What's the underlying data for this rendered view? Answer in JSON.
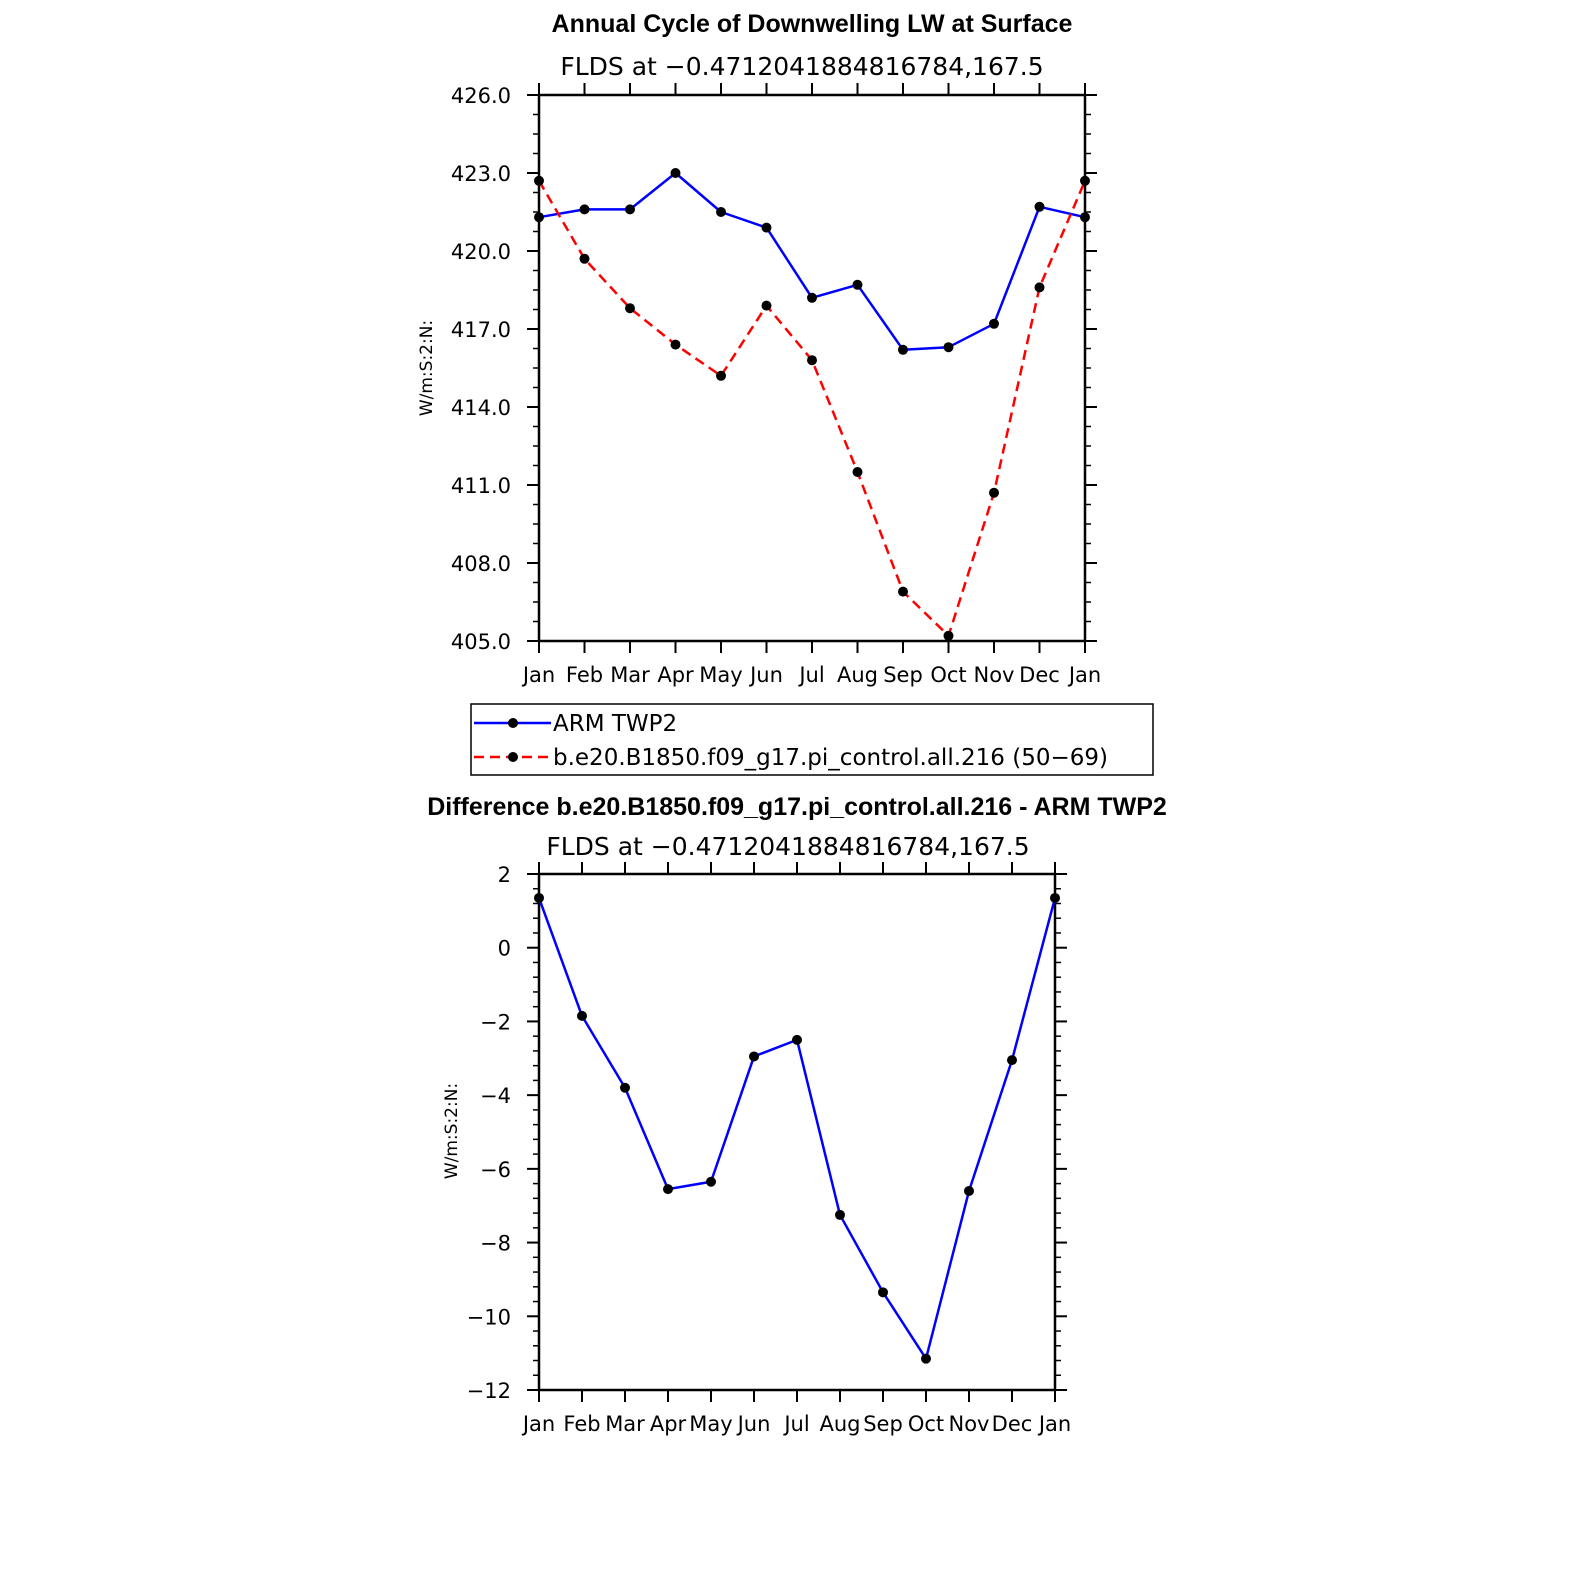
{
  "chart_data": [
    {
      "type": "line",
      "title": "Annual Cycle of Downwelling LW at Surface",
      "subtitle": "FLDS at −0.4712041884816784,167.5",
      "xlabel": "",
      "ylabel": "W/m:S:2:N:",
      "categories": [
        "Jan",
        "Feb",
        "Mar",
        "Apr",
        "May",
        "Jun",
        "Jul",
        "Aug",
        "Sep",
        "Oct",
        "Nov",
        "Dec",
        "Jan"
      ],
      "ylim": [
        405.0,
        426.0
      ],
      "yticks": [
        "405.0",
        "408.0",
        "411.0",
        "414.0",
        "417.0",
        "420.0",
        "423.0",
        "426.0"
      ],
      "grid": false,
      "legend": "below",
      "series": [
        {
          "name": "ARM TWP2",
          "color": "#0000ff",
          "style": "solid",
          "values": [
            421.3,
            421.6,
            421.6,
            423.0,
            421.5,
            420.9,
            418.2,
            418.7,
            416.2,
            416.3,
            417.2,
            421.7,
            421.3
          ]
        },
        {
          "name": "b.e20.B1850.f09_g17.pi_control.all.216 (50−69)",
          "color": "#ff0000",
          "style": "dashed",
          "values": [
            422.7,
            419.7,
            417.8,
            416.4,
            415.2,
            417.9,
            415.8,
            411.5,
            406.9,
            405.2,
            410.7,
            418.6,
            422.7
          ]
        }
      ]
    },
    {
      "type": "line",
      "title": "Difference b.e20.B1850.f09_g17.pi_control.all.216 - ARM TWP2",
      "subtitle": "FLDS at −0.4712041884816784,167.5",
      "xlabel": "",
      "ylabel": "W/m:S:2:N:",
      "categories": [
        "Jan",
        "Feb",
        "Mar",
        "Apr",
        "May",
        "Jun",
        "Jul",
        "Aug",
        "Sep",
        "Oct",
        "Nov",
        "Dec",
        "Jan"
      ],
      "ylim": [
        -12,
        2
      ],
      "yticks": [
        "−12",
        "−10",
        "−8",
        "−6",
        "−4",
        "−2",
        "0",
        "2"
      ],
      "grid": false,
      "series": [
        {
          "color": "#0000ff",
          "style": "solid",
          "values": [
            1.35,
            -1.85,
            -3.8,
            -6.55,
            -6.35,
            -2.95,
            -2.5,
            -7.25,
            -9.35,
            -11.15,
            -6.6,
            -3.05,
            1.35
          ]
        }
      ]
    }
  ]
}
